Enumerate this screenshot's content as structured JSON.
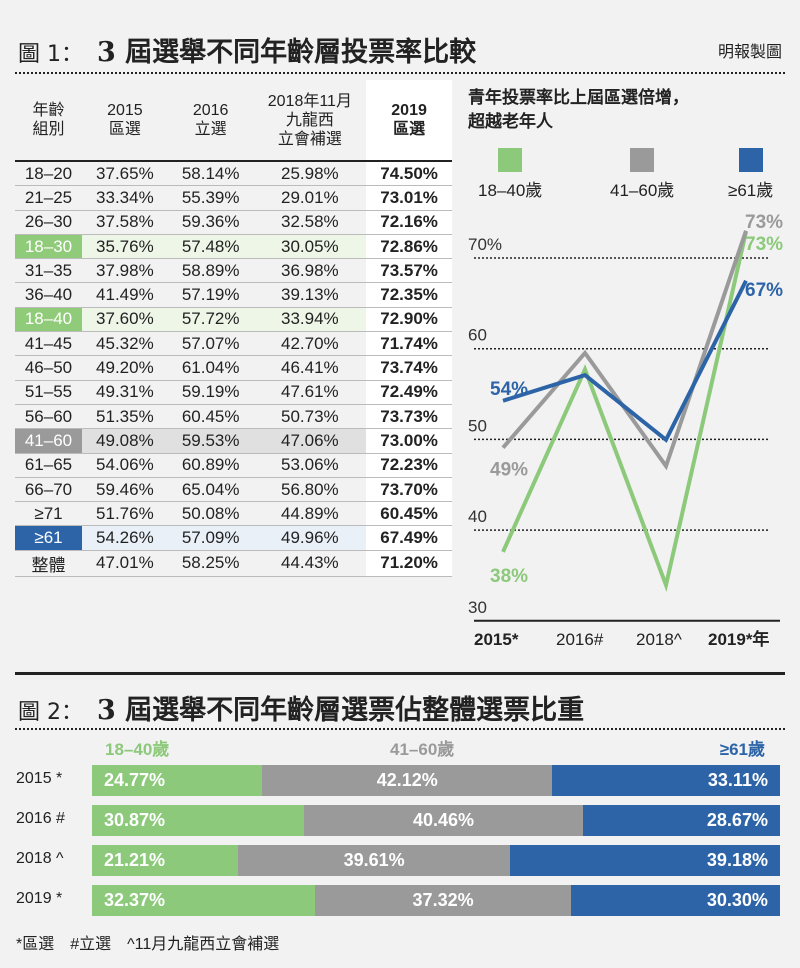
{
  "fig1": {
    "num": "圖 1：",
    "title": "3 屆選舉不同年齡層投票率比較",
    "credit": "明報製圖"
  },
  "table": {
    "headers": [
      "年齡\n組別",
      "2015\n區選",
      "2016\n立選",
      "2018年11月\n九龍西\n立會補選",
      "2019\n區選"
    ],
    "rows": [
      {
        "label": "18–20",
        "v": [
          "37.65%",
          "58.14%",
          "25.98%",
          "74.50%"
        ],
        "hl": ""
      },
      {
        "label": "21–25",
        "v": [
          "33.34%",
          "55.39%",
          "29.01%",
          "73.01%"
        ],
        "hl": ""
      },
      {
        "label": "26–30",
        "v": [
          "37.58%",
          "59.36%",
          "32.58%",
          "72.16%"
        ],
        "hl": ""
      },
      {
        "label": "18–30",
        "v": [
          "35.76%",
          "57.48%",
          "30.05%",
          "72.86%"
        ],
        "hl": "g"
      },
      {
        "label": "31–35",
        "v": [
          "37.98%",
          "58.89%",
          "36.98%",
          "73.57%"
        ],
        "hl": ""
      },
      {
        "label": "36–40",
        "v": [
          "41.49%",
          "57.19%",
          "39.13%",
          "72.35%"
        ],
        "hl": ""
      },
      {
        "label": "18–40",
        "v": [
          "37.60%",
          "57.72%",
          "33.94%",
          "72.90%"
        ],
        "hl": "g"
      },
      {
        "label": "41–45",
        "v": [
          "45.32%",
          "57.07%",
          "42.70%",
          "71.74%"
        ],
        "hl": ""
      },
      {
        "label": "46–50",
        "v": [
          "49.20%",
          "61.04%",
          "46.41%",
          "73.74%"
        ],
        "hl": ""
      },
      {
        "label": "51–55",
        "v": [
          "49.31%",
          "59.19%",
          "47.61%",
          "72.49%"
        ],
        "hl": ""
      },
      {
        "label": "56–60",
        "v": [
          "51.35%",
          "60.45%",
          "50.73%",
          "73.73%"
        ],
        "hl": ""
      },
      {
        "label": "41–60",
        "v": [
          "49.08%",
          "59.53%",
          "47.06%",
          "73.00%"
        ],
        "hl": "y"
      },
      {
        "label": "61–65",
        "v": [
          "54.06%",
          "60.89%",
          "53.06%",
          "72.23%"
        ],
        "hl": ""
      },
      {
        "label": "66–70",
        "v": [
          "59.46%",
          "65.04%",
          "56.80%",
          "73.70%"
        ],
        "hl": ""
      },
      {
        "label": "≥71",
        "v": [
          "51.76%",
          "50.08%",
          "44.89%",
          "60.45%"
        ],
        "hl": ""
      },
      {
        "label": "≥61",
        "v": [
          "54.26%",
          "57.09%",
          "49.96%",
          "67.49%"
        ],
        "hl": "u"
      },
      {
        "label": "整體",
        "v": [
          "47.01%",
          "58.25%",
          "44.43%",
          "71.20%"
        ],
        "hl": ""
      }
    ]
  },
  "chart_data": [
    {
      "type": "line",
      "title": "青年投票率比上屆區選倍增，\n超越老年人",
      "categories": [
        "2015*",
        "2016#",
        "2018^",
        "2019*年"
      ],
      "yticks": [
        "30",
        "40",
        "50",
        "60",
        "70%"
      ],
      "ylim": [
        30,
        74
      ],
      "grid": true,
      "legend": "top",
      "series": [
        {
          "name": "18–40歲",
          "color": "#8cc97a",
          "values": [
            37.6,
            57.72,
            33.94,
            72.9
          ],
          "labels": {
            "0": "38%",
            "3": "73%"
          }
        },
        {
          "name": "41–60歲",
          "color": "#9a9a9a",
          "values": [
            49.08,
            59.53,
            47.06,
            73.0
          ],
          "labels": {
            "0": "49%",
            "3": "73%"
          }
        },
        {
          "name": "≥61歲",
          "color": "#2d64a8",
          "values": [
            54.26,
            57.09,
            49.96,
            67.49
          ],
          "labels": {
            "0": "54%",
            "3": "67%"
          }
        }
      ]
    },
    {
      "type": "bar",
      "stacked": true,
      "horizontal": true,
      "title": "3 屆選舉不同年齡層選票佔整體選票比重",
      "num": "圖 2：",
      "categories": [
        "2015 *",
        "2016 #",
        "2018 ^",
        "2019 *"
      ],
      "series": [
        {
          "name": "18–40歲",
          "color": "#8cc97a",
          "values": [
            24.77,
            30.87,
            21.21,
            32.37
          ],
          "labels": [
            "24.77%",
            "30.87%",
            "21.21%",
            "32.37%"
          ]
        },
        {
          "name": "41–60歲",
          "color": "#9a9a9a",
          "values": [
            42.12,
            40.46,
            39.61,
            37.32
          ],
          "labels": [
            "42.12%",
            "40.46%",
            "39.61%",
            "37.32%"
          ]
        },
        {
          "name": "≥61歲",
          "color": "#2d64a8",
          "values": [
            33.11,
            28.67,
            39.18,
            30.3
          ],
          "labels": [
            "33.11%",
            "28.67%",
            "39.18%",
            "30.30%"
          ]
        }
      ]
    }
  ],
  "footnote": "*區選　#立選　^11月九龍西立會補選"
}
